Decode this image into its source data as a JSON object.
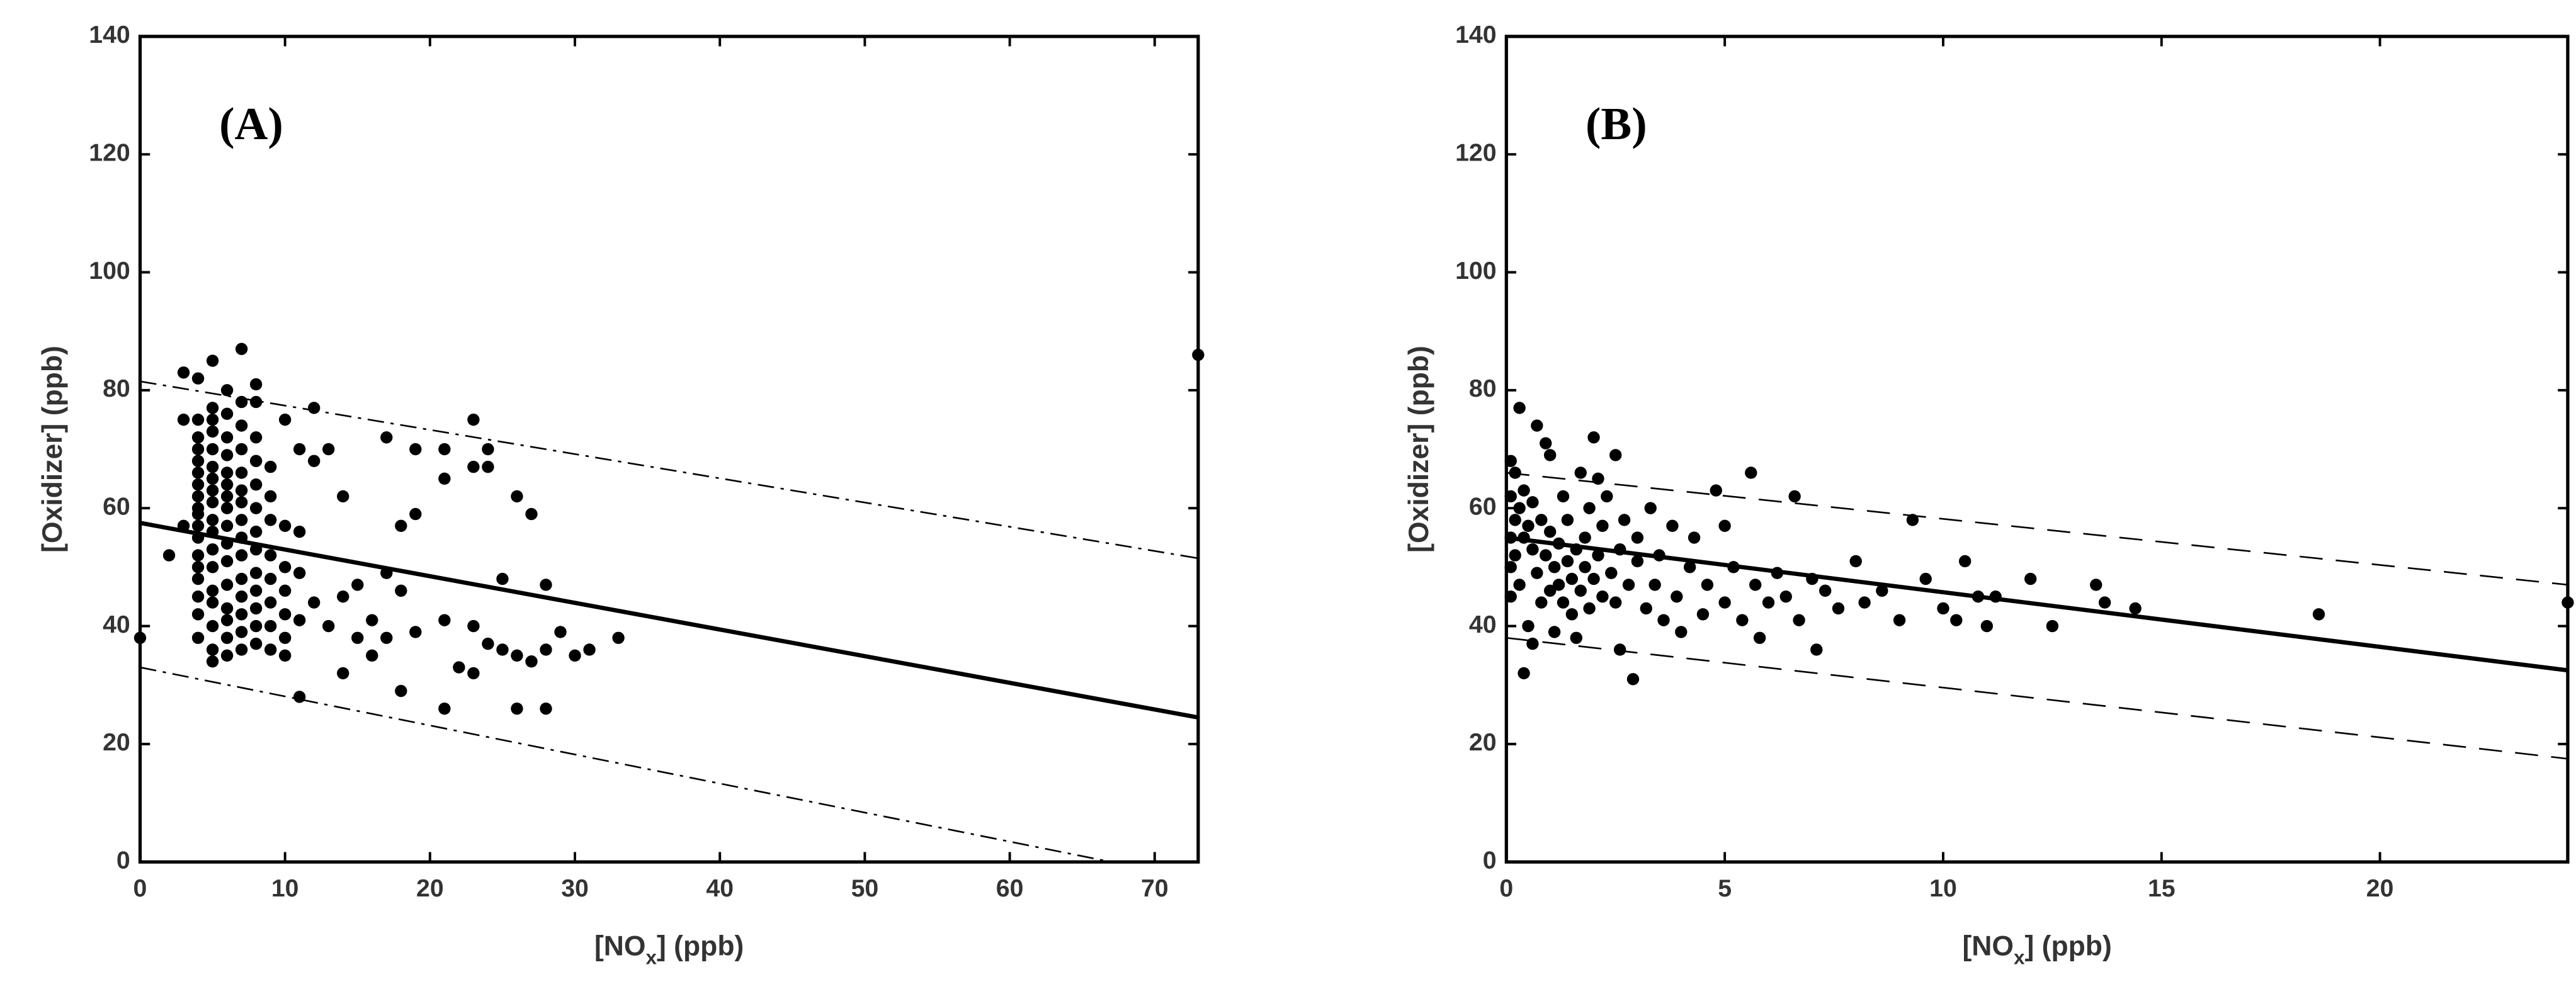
{
  "chart_data": [
    {
      "type": "scatter",
      "panel_label": "(A)",
      "x_label_parts": [
        "[NO",
        "x",
        "] (ppb)"
      ],
      "y_label": "[Oxidizer] (ppb)",
      "xlim": [
        0,
        73
      ],
      "ylim": [
        0,
        140
      ],
      "xticks": [
        0,
        10,
        20,
        30,
        40,
        50,
        60,
        70
      ],
      "yticks": [
        0,
        20,
        40,
        60,
        80,
        100,
        120,
        140
      ],
      "color": "#000000",
      "x": [
        4,
        4,
        4,
        4,
        4,
        4,
        4,
        4,
        4,
        4,
        4,
        4,
        4,
        4,
        4,
        4,
        4,
        5,
        5,
        5,
        5,
        5,
        5,
        5,
        5,
        5,
        5,
        5,
        5,
        5,
        5,
        5,
        5,
        5,
        5,
        6,
        6,
        6,
        6,
        6,
        6,
        6,
        6,
        6,
        6,
        6,
        6,
        6,
        6,
        6,
        6,
        7,
        7,
        7,
        7,
        7,
        7,
        7,
        7,
        7,
        7,
        7,
        7,
        7,
        7,
        7,
        8,
        8,
        8,
        8,
        8,
        8,
        8,
        8,
        8,
        8,
        8,
        8,
        8,
        9,
        9,
        9,
        9,
        9,
        9,
        9,
        9,
        10,
        10,
        10,
        10,
        10,
        10,
        10,
        0,
        2,
        3,
        3,
        3,
        4,
        11,
        11,
        11,
        11,
        11,
        12,
        12,
        12,
        13,
        13,
        14,
        14,
        14,
        15,
        15,
        16,
        16,
        17,
        17,
        17,
        18,
        18,
        18,
        19,
        19,
        19,
        21,
        21,
        21,
        21,
        22,
        23,
        23,
        23,
        23,
        24,
        24,
        24,
        25,
        25,
        26,
        26,
        26,
        27,
        27,
        28,
        28,
        28,
        29,
        30,
        31,
        33,
        73
      ],
      "y": [
        38,
        42,
        45,
        48,
        50,
        52,
        55,
        57,
        59,
        60,
        62,
        64,
        66,
        68,
        70,
        72,
        75,
        34,
        36,
        40,
        44,
        46,
        50,
        53,
        56,
        58,
        61,
        63,
        65,
        67,
        70,
        73,
        75,
        77,
        85,
        35,
        38,
        41,
        43,
        47,
        51,
        54,
        57,
        60,
        62,
        64,
        66,
        69,
        72,
        76,
        80,
        36,
        39,
        42,
        45,
        48,
        52,
        55,
        58,
        61,
        63,
        66,
        70,
        74,
        78,
        87,
        37,
        40,
        43,
        46,
        49,
        53,
        56,
        60,
        64,
        68,
        72,
        78,
        81,
        36,
        40,
        44,
        48,
        52,
        58,
        62,
        67,
        35,
        38,
        42,
        46,
        50,
        57,
        75,
        38,
        52,
        57,
        83,
        75,
        82,
        28,
        41,
        49,
        56,
        70,
        77,
        44,
        68,
        70,
        40,
        32,
        62,
        45,
        38,
        47,
        35,
        41,
        72,
        49,
        38,
        57,
        46,
        29,
        59,
        70,
        39,
        26,
        41,
        65,
        70,
        33,
        32,
        40,
        67,
        75,
        70,
        37,
        67,
        48,
        36,
        35,
        26,
        62,
        34,
        59,
        47,
        26,
        36,
        39,
        35,
        36,
        38,
        86
      ],
      "lines": [
        {
          "x": [
            0,
            73
          ],
          "y": [
            57.5,
            24.5
          ],
          "style": "solid"
        },
        {
          "x": [
            0,
            73
          ],
          "y": [
            81.5,
            51.5
          ],
          "style": "dashdot"
        },
        {
          "x": [
            0,
            67
          ],
          "y": [
            33,
            0
          ],
          "style": "dashdot"
        }
      ]
    },
    {
      "type": "scatter",
      "panel_label": "(B)",
      "x_label_parts": [
        "[NO",
        "x",
        "] (ppb)"
      ],
      "y_label": "[Oxidizer] (ppb)",
      "xlim": [
        0,
        24.3
      ],
      "ylim": [
        0,
        140
      ],
      "xticks": [
        0,
        5,
        10,
        15,
        20
      ],
      "yticks": [
        0,
        20,
        40,
        60,
        80,
        100,
        120,
        140
      ],
      "color": "#000000",
      "x": [
        0.1,
        0.1,
        0.1,
        0.1,
        0.1,
        0.2,
        0.2,
        0.2,
        0.3,
        0.3,
        0.3,
        0.4,
        0.4,
        0.4,
        0.5,
        0.5,
        0.6,
        0.6,
        0.6,
        0.7,
        0.7,
        0.8,
        0.8,
        0.9,
        0.9,
        1.0,
        1.0,
        1.0,
        1.1,
        1.1,
        1.2,
        1.2,
        1.3,
        1.3,
        1.4,
        1.4,
        1.5,
        1.5,
        1.6,
        1.6,
        1.7,
        1.7,
        1.8,
        1.8,
        1.9,
        1.9,
        2.0,
        2.0,
        2.1,
        2.1,
        2.2,
        2.2,
        2.3,
        2.4,
        2.5,
        2.5,
        2.6,
        2.6,
        2.7,
        2.8,
        2.9,
        3.0,
        3.0,
        3.2,
        3.3,
        3.4,
        3.5,
        3.6,
        3.8,
        3.9,
        4.0,
        4.2,
        4.3,
        4.5,
        4.6,
        4.8,
        5.0,
        5.0,
        5.2,
        5.4,
        5.6,
        5.7,
        5.8,
        6.0,
        6.2,
        6.4,
        6.6,
        6.7,
        7.0,
        7.1,
        7.3,
        7.6,
        8.0,
        8.2,
        8.6,
        9.0,
        9.3,
        9.6,
        10.0,
        10.3,
        10.5,
        10.8,
        11.0,
        11.2,
        12.0,
        12.5,
        13.5,
        13.7,
        14.4,
        18.6,
        24.3
      ],
      "y": [
        68,
        62,
        55,
        50,
        45,
        66,
        58,
        52,
        77,
        60,
        47,
        32,
        55,
        63,
        40,
        57,
        37,
        53,
        61,
        74,
        49,
        58,
        44,
        71,
        52,
        69,
        46,
        56,
        39,
        50,
        54,
        47,
        62,
        44,
        51,
        58,
        48,
        42,
        38,
        53,
        66,
        46,
        50,
        55,
        43,
        60,
        72,
        48,
        52,
        65,
        45,
        57,
        62,
        49,
        69,
        44,
        36,
        53,
        58,
        47,
        31,
        51,
        55,
        43,
        60,
        47,
        52,
        41,
        57,
        45,
        39,
        50,
        55,
        42,
        47,
        63,
        44,
        57,
        50,
        41,
        66,
        47,
        38,
        44,
        49,
        45,
        62,
        41,
        48,
        36,
        46,
        43,
        51,
        44,
        46,
        41,
        58,
        48,
        43,
        41,
        51,
        45,
        40,
        45,
        48,
        40,
        47,
        44,
        43,
        42,
        44
      ],
      "lines": [
        {
          "x": [
            0,
            24.3
          ],
          "y": [
            55,
            32.5
          ],
          "style": "solid"
        },
        {
          "x": [
            0,
            24.3
          ],
          "y": [
            66,
            47
          ],
          "style": "dashed"
        },
        {
          "x": [
            0,
            24.3
          ],
          "y": [
            38,
            17.5
          ],
          "style": "dashed"
        }
      ]
    }
  ]
}
